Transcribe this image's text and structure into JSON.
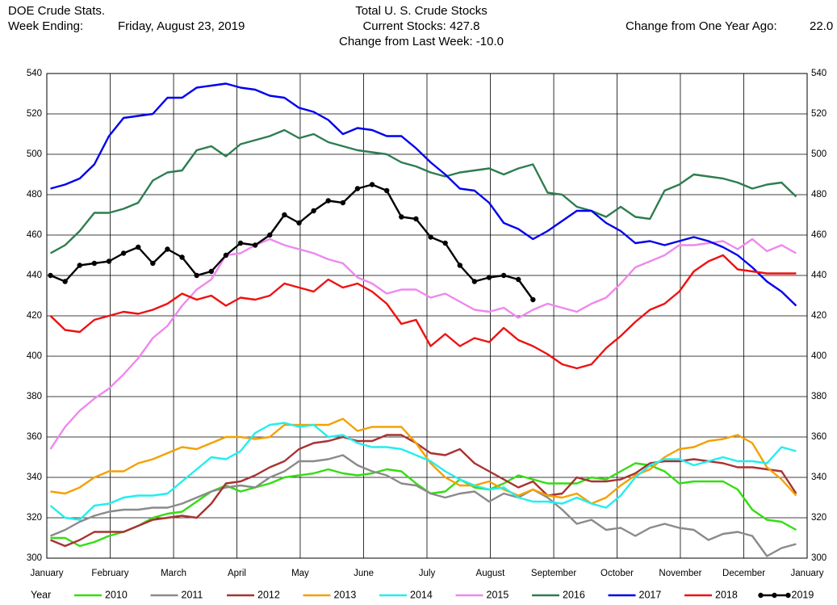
{
  "header": {
    "source": "DOE Crude Stats.",
    "week_label": "Week Ending:",
    "week_date": "Friday, August 23, 2019",
    "current_stocks": "Current Stocks: 427.8",
    "change_week": "Change from Last Week: -10.0",
    "change_year_label": "Change from One Year Ago:",
    "change_year_value": "22.0"
  },
  "chart_data": {
    "type": "line",
    "title": "Total U. S. Crude Stocks",
    "legend_title": "Year",
    "grid": true,
    "xlim": [
      -0.25,
      51.75
    ],
    "xticks": [
      {
        "value": -0.25,
        "label": "January"
      },
      {
        "value": 4.08,
        "label": "February"
      },
      {
        "value": 8.42,
        "label": "March"
      },
      {
        "value": 12.75,
        "label": "April"
      },
      {
        "value": 17.08,
        "label": "May"
      },
      {
        "value": 21.42,
        "label": "June"
      },
      {
        "value": 25.75,
        "label": "July"
      },
      {
        "value": 30.08,
        "label": "August"
      },
      {
        "value": 34.42,
        "label": "September"
      },
      {
        "value": 38.75,
        "label": "October"
      },
      {
        "value": 43.08,
        "label": "November"
      },
      {
        "value": 47.42,
        "label": "December"
      },
      {
        "value": 51.75,
        "label": "January"
      }
    ],
    "ylim": [
      300,
      540
    ],
    "yticks": [
      300,
      320,
      340,
      360,
      380,
      400,
      420,
      440,
      460,
      480,
      500,
      520,
      540
    ],
    "x": [
      0,
      1,
      2,
      3,
      4,
      5,
      6,
      7,
      8,
      9,
      10,
      11,
      12,
      13,
      14,
      15,
      16,
      17,
      18,
      19,
      20,
      21,
      22,
      23,
      24,
      25,
      26,
      27,
      28,
      29,
      30,
      31,
      32,
      33,
      34,
      35,
      36,
      37,
      38,
      39,
      40,
      41,
      42,
      43,
      44,
      45,
      46,
      47,
      48,
      49,
      50,
      51
    ],
    "series": [
      {
        "name": "2010",
        "color": "#33dd11",
        "values": [
          310,
          310,
          306,
          308,
          311,
          313,
          316,
          320,
          322,
          323,
          328,
          333,
          336,
          333,
          335,
          337,
          340,
          341,
          342,
          344,
          342,
          341,
          342,
          344,
          343,
          337,
          332,
          333,
          339,
          335,
          334,
          337,
          341,
          339,
          337,
          337,
          337,
          340,
          339,
          343,
          347,
          346,
          343,
          337,
          338,
          338,
          338,
          334,
          324,
          319,
          318,
          314
        ]
      },
      {
        "name": "2011",
        "color": "#8a8a8a",
        "values": [
          311,
          314,
          318,
          321,
          323,
          324,
          324,
          325,
          325,
          327,
          330,
          333,
          335,
          336,
          335,
          340,
          343,
          348,
          348,
          349,
          351,
          346,
          343,
          341,
          337,
          336,
          332,
          330,
          332,
          333,
          328,
          332,
          330,
          334,
          330,
          324,
          317,
          319,
          314,
          315,
          311,
          315,
          317,
          315,
          314,
          309,
          312,
          313,
          311,
          301,
          305,
          307
        ]
      },
      {
        "name": "2012",
        "color": "#a83232",
        "values": [
          309,
          306,
          309,
          313,
          313,
          313,
          316,
          319,
          320,
          321,
          320,
          327,
          337,
          338,
          341,
          345,
          348,
          354,
          357,
          358,
          360,
          358,
          358,
          361,
          361,
          357,
          352,
          351,
          354,
          347,
          343,
          339,
          335,
          338,
          331,
          332,
          340,
          338,
          338,
          339,
          342,
          347,
          348,
          348,
          349,
          348,
          347,
          345,
          345,
          344,
          343,
          332
        ]
      },
      {
        "name": "2013",
        "color": "#f5a000",
        "values": [
          333,
          332,
          335,
          340,
          343,
          343,
          347,
          349,
          352,
          355,
          354,
          357,
          360,
          360,
          359,
          360,
          366,
          366,
          366,
          366,
          369,
          363,
          365,
          365,
          365,
          357,
          347,
          340,
          336,
          336,
          338,
          334,
          331,
          334,
          331,
          330,
          332,
          327,
          330,
          336,
          341,
          344,
          350,
          354,
          355,
          358,
          359,
          361,
          357,
          345,
          339,
          331
        ]
      },
      {
        "name": "2014",
        "color": "#22eeee",
        "values": [
          326,
          320,
          319,
          326,
          327,
          330,
          331,
          331,
          332,
          338,
          344,
          350,
          349,
          353,
          362,
          366,
          367,
          365,
          366,
          360,
          361,
          357,
          355,
          355,
          354,
          351,
          348,
          343,
          339,
          336,
          334,
          335,
          330,
          328,
          328,
          327,
          330,
          327,
          325,
          331,
          340,
          346,
          349,
          349,
          346,
          348,
          350,
          348,
          348,
          347,
          355,
          353
        ]
      },
      {
        "name": "2015",
        "color": "#ee88ee",
        "values": [
          354,
          365,
          373,
          379,
          384,
          391,
          399,
          409,
          415,
          425,
          433,
          438,
          450,
          451,
          455,
          458,
          455,
          453,
          451,
          448,
          446,
          439,
          436,
          431,
          433,
          433,
          429,
          431,
          427,
          423,
          422,
          424,
          419,
          423,
          426,
          424,
          422,
          426,
          429,
          436,
          444,
          447,
          450,
          455,
          455,
          456,
          457,
          453,
          458,
          452,
          455,
          451
        ]
      },
      {
        "name": "2016",
        "color": "#2e7d50",
        "values": [
          451,
          455,
          462,
          471,
          471,
          473,
          476,
          487,
          491,
          492,
          502,
          504,
          499,
          505,
          507,
          509,
          512,
          508,
          510,
          506,
          504,
          502,
          501,
          500,
          496,
          494,
          491,
          489,
          491,
          492,
          493,
          490,
          493,
          495,
          481,
          480,
          474,
          472,
          469,
          474,
          469,
          468,
          482,
          485,
          490,
          489,
          488,
          486,
          483,
          485,
          486,
          479
        ]
      },
      {
        "name": "2017",
        "color": "#0000ee",
        "values": [
          483,
          485,
          488,
          495,
          509,
          518,
          519,
          520,
          528,
          528,
          533,
          534,
          535,
          533,
          532,
          529,
          528,
          523,
          521,
          517,
          510,
          513,
          512,
          509,
          509,
          503,
          496,
          490,
          483,
          482,
          476,
          466,
          463,
          458,
          462,
          467,
          472,
          472,
          466,
          462,
          456,
          457,
          455,
          457,
          459,
          457,
          454,
          450,
          444,
          437,
          432,
          425
        ]
      },
      {
        "name": "2018",
        "color": "#ee1111",
        "values": [
          420,
          413,
          412,
          418,
          420,
          422,
          421,
          423,
          426,
          431,
          428,
          430,
          425,
          429,
          428,
          430,
          436,
          434,
          432,
          438,
          434,
          436,
          432,
          426,
          416,
          418,
          405,
          411,
          405,
          409,
          407,
          414,
          408,
          405,
          401,
          396,
          394,
          396,
          404,
          410,
          417,
          423,
          426,
          432,
          442,
          447,
          450,
          443,
          442,
          441,
          441,
          441
        ]
      },
      {
        "name": "2019",
        "color": "#000000",
        "markers": true,
        "x": [
          0,
          1,
          2,
          3,
          4,
          5,
          6,
          7,
          8,
          9,
          10,
          11,
          12,
          13,
          14,
          15,
          16,
          17,
          18,
          19,
          20,
          21,
          22,
          23,
          24,
          25,
          26,
          27,
          28,
          29,
          30,
          31,
          32,
          33
        ],
        "values": [
          440,
          437,
          445,
          446,
          447,
          451,
          454,
          446,
          453,
          449,
          440,
          442,
          450,
          456,
          455,
          460,
          470,
          466,
          472,
          477,
          476,
          483,
          485,
          482,
          469,
          468,
          459,
          456,
          445,
          437,
          439,
          440,
          438,
          428
        ]
      }
    ]
  }
}
